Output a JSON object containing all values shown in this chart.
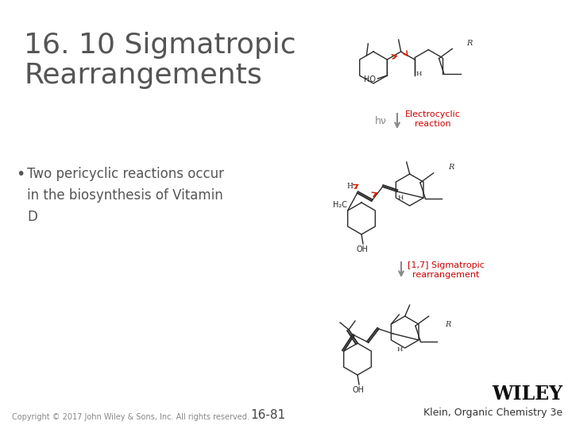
{
  "title_line1": "16. 10 Sigmatropic",
  "title_line2": "Rearrangements",
  "bullet_text": "Two pericyclic reactions occur\nin the biosynthesis of Vitamin\nD",
  "title_color": "#555555",
  "bullet_color": "#555555",
  "background_color": "#ffffff",
  "copyright_text": "Copyright © 2017 John Wiley & Sons, Inc. All rights reserved.",
  "page_number": "16-81",
  "wiley_text": "WILEY",
  "klein_text": "Klein, Organic Chemistry 3e",
  "electrocyclic_label": "Electrocyclic\nreaction",
  "sigmatropic_label": "[1,7] Sigmatropic\nrearrangement",
  "hv_label": "hν",
  "footer_color": "#888888",
  "red_label_color": "#cc0000",
  "arrow_color": "#888888",
  "struct_col": "#2a2a2a",
  "red_arrow_col": "#cc2200"
}
